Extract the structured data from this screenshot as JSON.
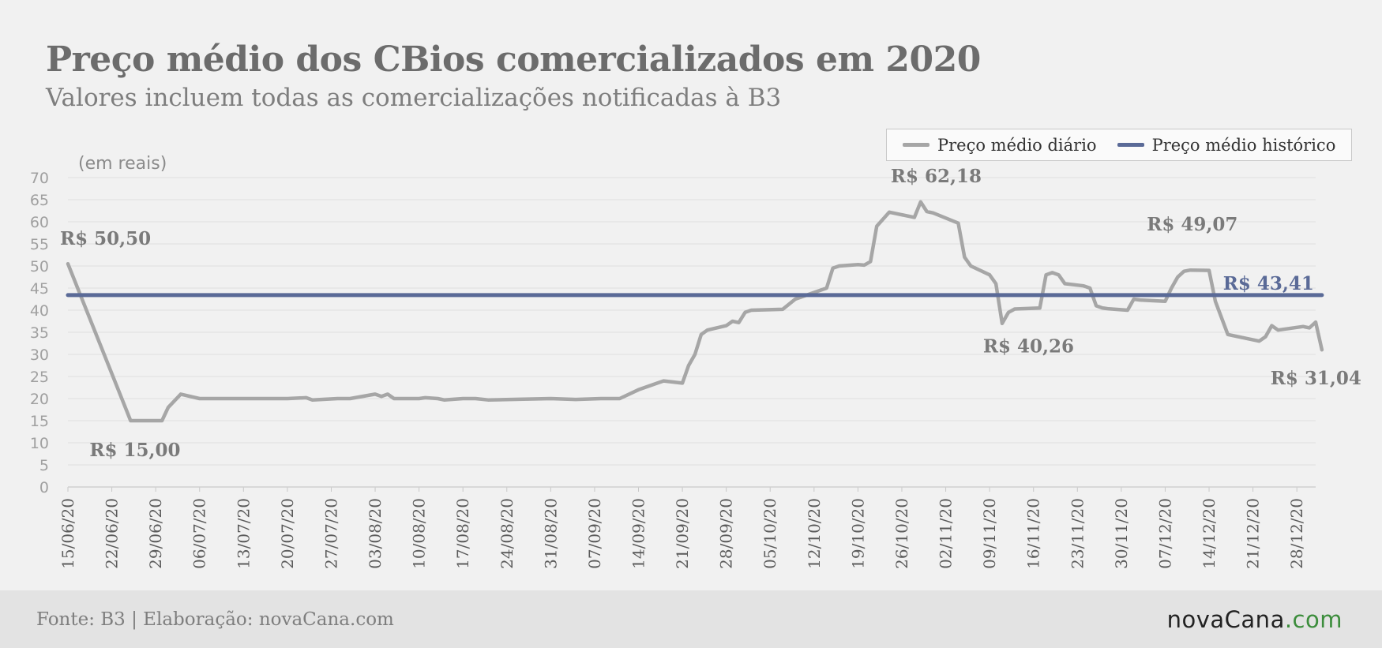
{
  "header": {
    "title": "Preço médio dos CBios comercializados em 2020",
    "subtitle": "Valores incluem todas as comercializações notificadas à B3"
  },
  "footer": {
    "source": "Fonte: B3 | Elaboração: novaCana.com",
    "logo_main": "novaCana",
    "logo_tld": ".com"
  },
  "colors": {
    "daily": "#a6a6a6",
    "historic": "#5a6a97",
    "annotation_historic": "#5a6a97",
    "annotation": "#7a7a7a"
  },
  "chart_data": {
    "type": "line",
    "title": "Preço médio dos CBios comercializados em 2020",
    "ylabel": "(em reais)",
    "xlabel": "",
    "ylim": [
      0,
      70
    ],
    "yticks": [
      0,
      5,
      10,
      15,
      20,
      25,
      30,
      35,
      40,
      45,
      50,
      55,
      60,
      65,
      70
    ],
    "grid": true,
    "legend_position": "top-right",
    "x_range": [
      "2020-06-15",
      "2020-12-31"
    ],
    "x_ticks": [
      "15/06/20",
      "22/06/20",
      "29/06/20",
      "06/07/20",
      "13/07/20",
      "20/07/20",
      "27/07/20",
      "03/08/20",
      "10/08/20",
      "17/08/20",
      "24/08/20",
      "31/08/20",
      "07/09/20",
      "14/09/20",
      "21/09/20",
      "28/09/20",
      "05/10/20",
      "12/10/20",
      "19/10/20",
      "26/10/20",
      "02/11/20",
      "09/11/20",
      "16/11/20",
      "23/11/20",
      "30/11/20",
      "07/12/20",
      "14/12/20",
      "21/12/20",
      "28/12/20"
    ],
    "series": [
      {
        "name": "Preço médio diário",
        "x": [
          "2020-06-15",
          "2020-06-25",
          "2020-06-30",
          "2020-07-01",
          "2020-07-03",
          "2020-07-06",
          "2020-07-13",
          "2020-07-20",
          "2020-07-23",
          "2020-07-24",
          "2020-07-28",
          "2020-07-30",
          "2020-08-03",
          "2020-08-04",
          "2020-08-05",
          "2020-08-06",
          "2020-08-10",
          "2020-08-11",
          "2020-08-13",
          "2020-08-14",
          "2020-08-17",
          "2020-08-19",
          "2020-08-21",
          "2020-08-31",
          "2020-09-04",
          "2020-09-08",
          "2020-09-11",
          "2020-09-14",
          "2020-09-17",
          "2020-09-18",
          "2020-09-21",
          "2020-09-22",
          "2020-09-23",
          "2020-09-24",
          "2020-09-25",
          "2020-09-28",
          "2020-09-29",
          "2020-09-30",
          "2020-10-01",
          "2020-10-02",
          "2020-10-07",
          "2020-10-09",
          "2020-10-10",
          "2020-10-14",
          "2020-10-15",
          "2020-10-16",
          "2020-10-19",
          "2020-10-20",
          "2020-10-21",
          "2020-10-22",
          "2020-10-24",
          "2020-10-28",
          "2020-10-29",
          "2020-10-30",
          "2020-10-31",
          "2020-11-04",
          "2020-11-05",
          "2020-11-06",
          "2020-11-09",
          "2020-11-10",
          "2020-11-11",
          "2020-11-12",
          "2020-11-13",
          "2020-11-17",
          "2020-11-18",
          "2020-11-19",
          "2020-11-20",
          "2020-11-21",
          "2020-11-24",
          "2020-11-25",
          "2020-11-26",
          "2020-11-27",
          "2020-11-28",
          "2020-12-01",
          "2020-12-02",
          "2020-12-03",
          "2020-12-07",
          "2020-12-08",
          "2020-12-09",
          "2020-12-10",
          "2020-12-11",
          "2020-12-14",
          "2020-12-15",
          "2020-12-17",
          "2020-12-22",
          "2020-12-23",
          "2020-12-24",
          "2020-12-25",
          "2020-12-29",
          "2020-12-30",
          "2020-12-31",
          "2021-01-01"
        ],
        "values": [
          50.5,
          15.0,
          15.0,
          18.0,
          21.0,
          20.0,
          20.0,
          20.0,
          20.2,
          19.7,
          20.0,
          20.0,
          21.0,
          20.5,
          21.0,
          20.0,
          20.0,
          20.2,
          20.0,
          19.7,
          20.0,
          20.0,
          19.7,
          20.0,
          19.8,
          20.0,
          20.0,
          22.0,
          23.5,
          24.0,
          23.5,
          27.5,
          30.0,
          34.5,
          35.5,
          36.5,
          37.5,
          37.2,
          39.5,
          40.0,
          40.2,
          42.5,
          43.0,
          45.0,
          49.5,
          50.0,
          50.3,
          50.2,
          51.0,
          59.0,
          62.18,
          61.0,
          64.5,
          62.3,
          62.0,
          59.7,
          52.0,
          50.0,
          48.0,
          46.0,
          37.0,
          39.5,
          40.26,
          40.5,
          48.0,
          48.5,
          48.0,
          46.0,
          45.5,
          45.0,
          41.0,
          40.5,
          40.3,
          40.0,
          42.5,
          42.3,
          42.0,
          45.0,
          47.5,
          48.8,
          49.07,
          49.0,
          42.0,
          34.5,
          33.0,
          34.0,
          36.5,
          35.5,
          36.3,
          36.0,
          37.3,
          31.04
        ]
      },
      {
        "name": "Preço médio histórico",
        "x": [
          "2020-06-15",
          "2021-01-01"
        ],
        "values": [
          43.41,
          43.41
        ]
      }
    ],
    "annotations": [
      {
        "text": "R$ 50,50",
        "x": "2020-06-15",
        "y": 50.5,
        "series": "Preço médio diário"
      },
      {
        "text": "R$ 15,00",
        "x": "2020-06-25",
        "y": 15.0,
        "series": "Preço médio diário"
      },
      {
        "text": "R$ 62,18",
        "x": "2020-10-28",
        "y": 62.18,
        "series": "Preço médio diário"
      },
      {
        "text": "R$ 40,26",
        "x": "2020-11-13",
        "y": 40.26,
        "series": "Preço médio diário"
      },
      {
        "text": "R$ 49,07",
        "x": "2020-12-11",
        "y": 49.07,
        "series": "Preço médio diário"
      },
      {
        "text": "R$ 43,41",
        "x": "2021-01-01",
        "y": 43.41,
        "series": "Preço médio histórico"
      },
      {
        "text": "R$ 31,04",
        "x": "2021-01-01",
        "y": 31.04,
        "series": "Preço médio diário"
      }
    ]
  }
}
